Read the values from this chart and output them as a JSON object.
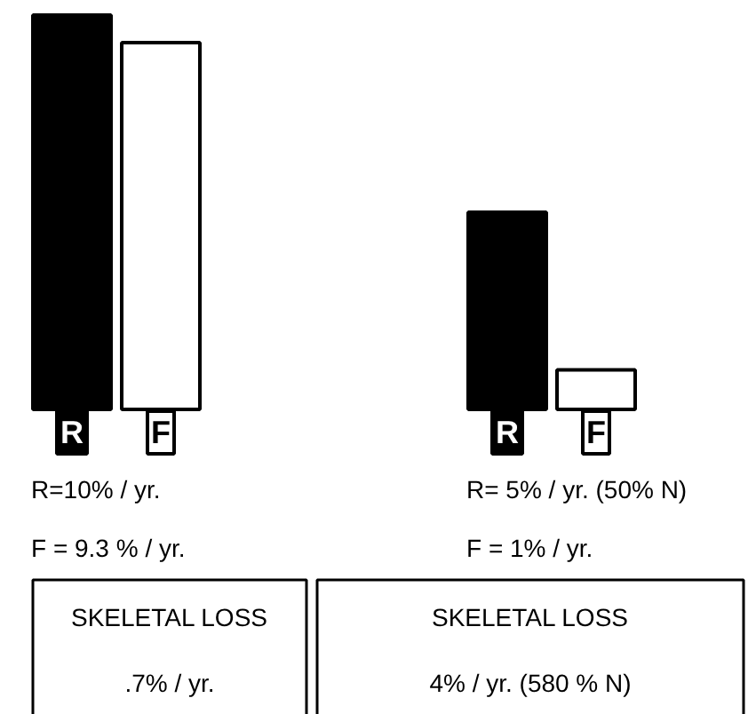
{
  "chart_data": {
    "type": "bar",
    "categories": [
      null,
      null
    ],
    "series": [
      {
        "name": "R",
        "color": "#000000",
        "values": [
          10,
          5
        ],
        "value_labels": [
          "R=10% / yr.",
          "R= 5% / yr. (50% N)"
        ]
      },
      {
        "name": "F",
        "color": "#ffffff",
        "values": [
          9.3,
          1
        ],
        "value_labels": [
          "F = 9.3 % / yr.",
          "F = 1% / yr."
        ]
      }
    ],
    "annotations": [
      "SKELETAL LOSS",
      ".7% / yr.",
      "SKELETAL LOSS",
      "4% / yr. (580 % N)"
    ]
  }
}
